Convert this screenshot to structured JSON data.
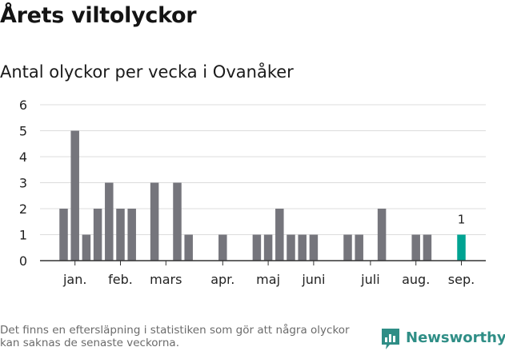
{
  "header": {
    "title": "Årets viltolyckor",
    "subtitle": "Antal olyckor per vecka i Ovanåker"
  },
  "chart_data": {
    "type": "bar",
    "ylim": [
      0,
      6
    ],
    "yticks": [
      0,
      1,
      2,
      3,
      4,
      5,
      6
    ],
    "grid": true,
    "month_labels": [
      {
        "label": "jan.",
        "week": 3
      },
      {
        "label": "feb.",
        "week": 7
      },
      {
        "label": "mars",
        "week": 11
      },
      {
        "label": "apr.",
        "week": 16
      },
      {
        "label": "maj",
        "week": 20
      },
      {
        "label": "juni",
        "week": 24
      },
      {
        "label": "juli",
        "week": 29
      },
      {
        "label": "aug.",
        "week": 33
      },
      {
        "label": "sep.",
        "week": 37
      }
    ],
    "weeks": [
      2,
      3,
      4,
      5,
      6,
      7,
      8,
      10,
      12,
      13,
      16,
      19,
      20,
      21,
      22,
      23,
      24,
      27,
      28,
      30,
      33,
      34,
      37
    ],
    "values": [
      2,
      5,
      1,
      2,
      3,
      2,
      2,
      3,
      3,
      1,
      1,
      1,
      1,
      2,
      1,
      1,
      1,
      1,
      1,
      2,
      1,
      1,
      1
    ],
    "highlight": {
      "week": 37,
      "value": 1,
      "label": "1"
    },
    "colors": {
      "bar": "#75757c",
      "highlight": "#00a392",
      "grid": "#dcdcdc",
      "axis": "#333333"
    }
  },
  "footer": {
    "note": "Det finns en eftersläpning i statistiken som gör att några olyckor kan saknas de senaste veckorna.",
    "brand": "Newsworthy",
    "brand_icon": "newsworthy-logo-icon",
    "brand_color": "#2f8e86"
  }
}
